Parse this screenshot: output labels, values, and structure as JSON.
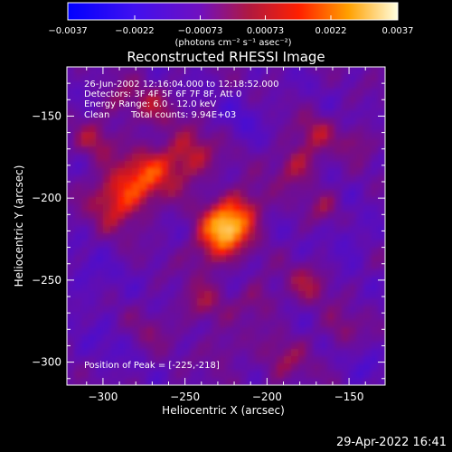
{
  "chart_data": {
    "type": "heatmap",
    "title": "Reconstructed RHESSI Image",
    "xlabel": "Heliocentric X (arcsec)",
    "ylabel": "Heliocentric Y (arcsec)",
    "x_ticks": [
      -300,
      -250,
      -200,
      -150
    ],
    "y_ticks": [
      -150,
      -200,
      -250,
      -300
    ],
    "x_tick_labels": [
      "−300",
      "−250",
      "−200",
      "−150"
    ],
    "y_tick_labels": [
      "−150",
      "−200",
      "−250",
      "−300"
    ],
    "xlim": [
      -322,
      -128
    ],
    "ylim": [
      -314,
      -120
    ],
    "colorbar": {
      "min": -0.0037,
      "max": 0.0037,
      "ticks": [
        -0.0037,
        -0.0022,
        -0.00073,
        0.00073,
        0.0022,
        0.0037
      ],
      "tick_labels": [
        "−0.0037",
        "−0.0022",
        "−0.00073",
        "0.00073",
        "0.0022",
        "0.0037"
      ],
      "unit": "(photons cm⁻² s⁻¹ asec⁻²)"
    },
    "peak": [
      -225,
      -218
    ],
    "blobs": [
      {
        "x": -225,
        "y": -218,
        "sigma": 10,
        "amp": 0.0036
      },
      {
        "x": -213,
        "y": -205,
        "sigma": 9,
        "amp": 0.0014
      },
      {
        "x": -235,
        "y": -233,
        "sigma": 9,
        "amp": 0.0012
      },
      {
        "x": -290,
        "y": -200,
        "sigma": 12,
        "amp": 0.0023
      },
      {
        "x": -272,
        "y": -185,
        "sigma": 11,
        "amp": 0.0019
      },
      {
        "x": -248,
        "y": -175,
        "sigma": 11,
        "amp": 0.0018
      },
      {
        "x": -305,
        "y": -165,
        "sigma": 8,
        "amp": 0.0012
      },
      {
        "x": -270,
        "y": -145,
        "sigma": 9,
        "amp": 0.0011
      },
      {
        "x": -290,
        "y": -140,
        "sigma": 8,
        "amp": 0.0009
      },
      {
        "x": -182,
        "y": -180,
        "sigma": 9,
        "amp": 0.0015
      },
      {
        "x": -170,
        "y": -160,
        "sigma": 8,
        "amp": 0.0012
      },
      {
        "x": -145,
        "y": -165,
        "sigma": 7,
        "amp": 0.001
      },
      {
        "x": -165,
        "y": -205,
        "sigma": 7,
        "amp": 0.0009
      },
      {
        "x": -240,
        "y": -265,
        "sigma": 9,
        "amp": 0.0011
      },
      {
        "x": -205,
        "y": -262,
        "sigma": 8,
        "amp": 0.001
      },
      {
        "x": -175,
        "y": -252,
        "sigma": 9,
        "amp": 0.0011
      },
      {
        "x": -155,
        "y": -280,
        "sigma": 8,
        "amp": 0.0009
      },
      {
        "x": -190,
        "y": -300,
        "sigma": 10,
        "amp": 0.001
      },
      {
        "x": -225,
        "y": -292,
        "sigma": 8,
        "amp": 0.0008
      },
      {
        "x": -270,
        "y": -280,
        "sigma": 9,
        "amp": 0.0006
      },
      {
        "x": -215,
        "y": -150,
        "sigma": 9,
        "amp": -0.0006
      },
      {
        "x": -150,
        "y": -225,
        "sigma": 9,
        "amp": -0.0007
      },
      {
        "x": -310,
        "y": -250,
        "sigma": 12,
        "amp": -0.0005
      },
      {
        "x": -300,
        "y": -290,
        "sigma": 10,
        "amp": -0.0004
      },
      {
        "x": -140,
        "y": -305,
        "sigma": 8,
        "amp": -0.0005
      }
    ]
  },
  "info": {
    "line1": "26-Jun-2002 12:16:04.000 to 12:18:52.000",
    "line2": "Detectors: 3F 4F 5F 6F 7F 8F, Att 0",
    "line3": "Energy Range: 6.0 - 12.0 keV",
    "line4_a": "Clean",
    "line4_b": "Total counts: 9.94E+03",
    "peak_text": "Position of Peak = [-225,-218]"
  },
  "stamp": "29-Apr-2022 16:41",
  "colors": {
    "background": "#000000",
    "foreground": "#ffffff",
    "cmap_low": "#0000ff",
    "cmap_mid": "#8000b0",
    "cmap_high": "#ffff80"
  }
}
